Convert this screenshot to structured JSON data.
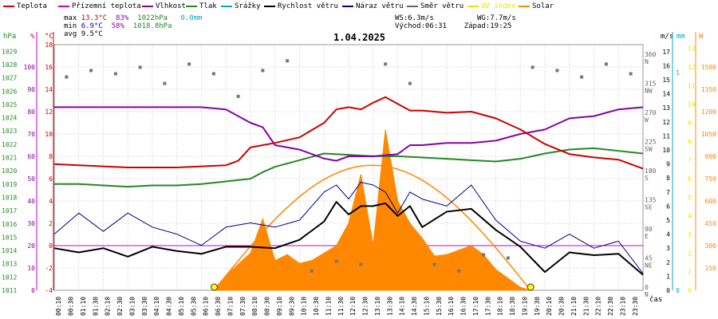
{
  "legend": [
    {
      "label": "Teplota",
      "color": "#cc0000"
    },
    {
      "label": "Přízemní teplota",
      "color": "#cc00cc"
    },
    {
      "label": "Vlhkost",
      "color": "#8800aa"
    },
    {
      "label": "Tlak",
      "color": "#228822"
    },
    {
      "label": "Srážky",
      "color": "#00aacc"
    },
    {
      "label": "Rychlost větru",
      "color": "#000000"
    },
    {
      "label": "Náraz větru",
      "color": "#000088"
    },
    {
      "label": "Směr větru",
      "color": "#666666"
    },
    {
      "label": "UV index",
      "color": "#e6e600"
    },
    {
      "label": "Solar",
      "color": "#ff8800"
    }
  ],
  "stats": {
    "max_label": "max",
    "max_temp": "13.3°C",
    "max_hum": "83%",
    "max_press": "1022hPa",
    "max_rain": "0.0mm",
    "min_label": "min",
    "min_temp": "6.9°C",
    "min_hum": "58%",
    "min_press": "1018.8hPa",
    "avg_label": "avg",
    "avg_temp": "9.5°C",
    "ws": "WS:6.3m/s",
    "wg": "WG:7.7m/s",
    "sunrise": "Východ:06:31",
    "sunset": "Západ:19:25"
  },
  "title": "1.04.2025",
  "axis_units": {
    "hpa": "hPa",
    "pct": "%",
    "degc": "°C",
    "ms": "m/s",
    "mm": "mm",
    "w": "W"
  },
  "axis_corner_label": "čas",
  "chart_data": {
    "type": "line",
    "title": "1.04.2025",
    "x_labels": [
      "00:10",
      "00:30",
      "01:10",
      "01:30",
      "02:10",
      "02:30",
      "03:10",
      "03:30",
      "04:10",
      "04:30",
      "05:10",
      "05:30",
      "06:10",
      "06:30",
      "07:10",
      "07:30",
      "08:10",
      "08:30",
      "09:10",
      "09:30",
      "10:10",
      "10:30",
      "11:10",
      "11:30",
      "12:10",
      "12:30",
      "13:10",
      "13:30",
      "14:10",
      "14:30",
      "15:10",
      "15:30",
      "16:10",
      "16:30",
      "17:10",
      "17:30",
      "18:10",
      "18:30",
      "19:10",
      "19:30",
      "20:10",
      "20:30",
      "21:10",
      "21:30",
      "22:10",
      "22:30",
      "23:10",
      "23:30"
    ],
    "x_range_hours": [
      0,
      24
    ],
    "axes": {
      "pressure_hpa": {
        "ticks": [
          1011,
          1012,
          1013,
          1014,
          1015,
          1016,
          1017,
          1018,
          1019,
          1020,
          1021,
          1022,
          1023,
          1024,
          1025,
          1026,
          1027,
          1028,
          1029
        ]
      },
      "humidity_pct": {
        "ticks": [
          0,
          10,
          20,
          30,
          40,
          50,
          60,
          70,
          80,
          90,
          100
        ]
      },
      "temperature_c": {
        "ticks": [
          -4,
          -2,
          0,
          2,
          4,
          6,
          8,
          10,
          12,
          14,
          16,
          18
        ]
      },
      "wind_dir_deg": {
        "ticks": [
          "0 N",
          "45 NE",
          "90 E",
          "135 SE",
          "180 S",
          "225 SW",
          "270 W",
          "315 NW",
          "360 N"
        ]
      },
      "wind_speed_ms": {
        "ticks": [
          0,
          1,
          2,
          3,
          4,
          5,
          6,
          7,
          8,
          9,
          10,
          11,
          12,
          13,
          14,
          15,
          16,
          17
        ]
      },
      "rain_mm": {
        "ticks": [
          0,
          1
        ]
      },
      "uv_index": {
        "ticks": [
          0,
          1,
          2,
          3,
          4,
          5,
          6,
          7,
          8,
          9,
          10,
          11,
          12,
          13
        ]
      },
      "solar_w": {
        "ticks": [
          150,
          300,
          450,
          600,
          750,
          900,
          1050,
          1200,
          1350,
          1500
        ]
      }
    },
    "series": [
      {
        "name": "Teplota",
        "unit": "°C",
        "x": [
          0,
          1,
          2,
          3,
          4,
          5,
          6,
          7,
          7.5,
          8,
          8.5,
          9,
          10,
          11,
          11.5,
          12,
          12.5,
          13,
          13.5,
          14,
          14.5,
          15,
          16,
          17,
          18,
          19,
          20,
          21,
          22,
          23,
          24
        ],
        "y": [
          7.3,
          7.2,
          7.1,
          7.0,
          7.0,
          7.0,
          7.1,
          7.2,
          7.6,
          8.8,
          9.0,
          9.2,
          9.7,
          11.0,
          12.2,
          12.4,
          12.2,
          12.8,
          13.3,
          12.7,
          12.1,
          12.1,
          11.9,
          12.0,
          11.4,
          10.4,
          9.1,
          8.2,
          7.9,
          7.7,
          6.9
        ]
      },
      {
        "name": "Vlhkost",
        "unit": "%",
        "x": [
          0,
          1,
          2,
          3,
          4,
          5,
          6,
          7,
          8,
          8.5,
          9,
          10,
          11,
          11.5,
          12,
          13,
          14,
          14.5,
          15,
          16,
          17,
          18,
          19,
          20,
          21,
          22,
          23,
          24
        ],
        "y": [
          82,
          82,
          82,
          82,
          82,
          82,
          82,
          81,
          75,
          73,
          65,
          63,
          59,
          58,
          60,
          60,
          61,
          65,
          65,
          66,
          66,
          67,
          70,
          72,
          77,
          78,
          81,
          82
        ]
      },
      {
        "name": "Tlak",
        "unit": "hPa",
        "x": [
          0,
          1,
          2,
          3,
          4,
          5,
          6,
          7,
          8,
          8.5,
          9,
          10,
          11,
          12,
          13,
          14,
          15,
          16,
          17,
          18,
          19,
          20,
          21,
          22,
          23,
          24
        ],
        "y": [
          1019.0,
          1019.0,
          1018.9,
          1018.8,
          1018.9,
          1018.9,
          1019.0,
          1019.2,
          1019.4,
          1019.9,
          1020.3,
          1020.8,
          1021.3,
          1021.2,
          1021.1,
          1021.1,
          1021.0,
          1020.9,
          1020.8,
          1020.7,
          1020.9,
          1021.3,
          1021.6,
          1021.7,
          1021.5,
          1021.3
        ]
      },
      {
        "name": "Rychlost větru",
        "unit": "m/s",
        "x": [
          0,
          1,
          2,
          3,
          4,
          5,
          6,
          7,
          8,
          9,
          10,
          11,
          11.5,
          12,
          12.5,
          13,
          13.5,
          14,
          14.5,
          15,
          16,
          17,
          18,
          19,
          20,
          21,
          22,
          23,
          24
        ],
        "y": [
          3.0,
          2.7,
          3.0,
          2.4,
          3.1,
          2.8,
          2.6,
          3.1,
          3.1,
          3.0,
          3.6,
          4.9,
          6.3,
          5.4,
          6.0,
          6.0,
          6.2,
          5.3,
          6.0,
          4.5,
          5.6,
          5.8,
          4.3,
          3.1,
          1.3,
          2.7,
          2.5,
          2.6,
          1.1
        ]
      },
      {
        "name": "Náraz větru",
        "unit": "m/s",
        "x": [
          0,
          1,
          2,
          3,
          4,
          5,
          6,
          7,
          8,
          9,
          10,
          11,
          11.5,
          12,
          12.5,
          13,
          13.5,
          14,
          14.5,
          15,
          16,
          17,
          18,
          19,
          20,
          21,
          22,
          23,
          24
        ],
        "y": [
          4.0,
          5.5,
          4.2,
          5.5,
          4.5,
          4.0,
          3.2,
          4.5,
          4.8,
          4.5,
          5.0,
          7.0,
          7.5,
          6.5,
          7.7,
          7.5,
          7.0,
          5.5,
          7.0,
          6.5,
          6.0,
          7.5,
          5.0,
          3.5,
          3.0,
          4.0,
          3.0,
          3.5,
          1.2
        ]
      },
      {
        "name": "Solar",
        "unit": "W",
        "x": [
          6.5,
          7,
          8,
          8.5,
          9,
          9.5,
          10,
          10.5,
          11,
          11.5,
          12,
          12.5,
          13,
          13.5,
          14,
          14.5,
          15,
          15.5,
          16,
          16.5,
          17,
          17.5,
          18,
          18.5,
          19,
          19.4
        ],
        "y": [
          0,
          100,
          250,
          480,
          200,
          240,
          180,
          200,
          250,
          300,
          450,
          780,
          300,
          1080,
          600,
          450,
          350,
          230,
          240,
          270,
          300,
          240,
          140,
          80,
          20,
          0
        ]
      },
      {
        "name": "UV index",
        "unit": "",
        "x": [
          0,
          24
        ],
        "y": [
          0,
          0
        ]
      }
    ],
    "wind_direction_points": {
      "unit": "deg",
      "x": [
        0.5,
        1.5,
        2.5,
        3.5,
        4.5,
        5.5,
        6.5,
        7.5,
        8.5,
        9.5,
        10.5,
        11.5,
        12.5,
        13.5,
        14.5,
        15.5,
        16.5,
        17.5,
        18.5,
        19.5,
        20.5,
        21.5,
        22.5,
        23.5
      ],
      "y": [
        330,
        340,
        335,
        345,
        320,
        350,
        335,
        300,
        340,
        355,
        30,
        45,
        40,
        350,
        320,
        40,
        30,
        55,
        50,
        345,
        340,
        330,
        350,
        335
      ]
    },
    "reference_line_c": 0
  }
}
